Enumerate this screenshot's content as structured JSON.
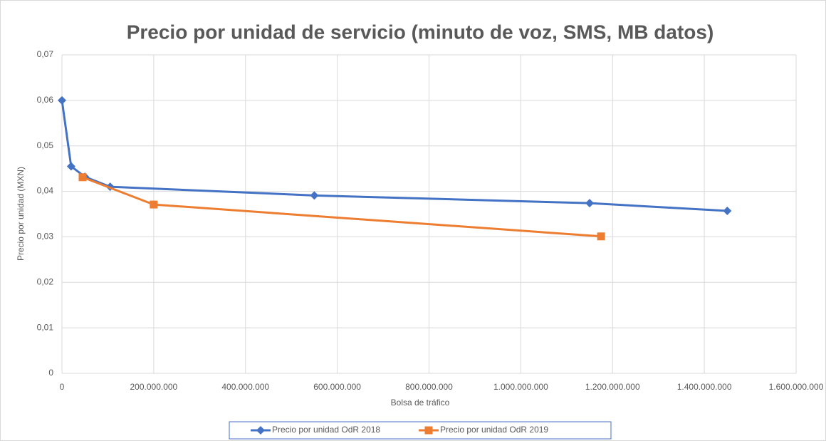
{
  "chart_data": {
    "type": "line",
    "title": "Precio por unidad de servicio (minuto de voz, SMS, MB datos)",
    "xlabel": "Bolsa de tráfico",
    "ylabel": "Precio por unidad (MXN)",
    "xlim": [
      0,
      1600000000
    ],
    "xticks": [
      0,
      {
        "value": 200000000,
        "label": "200.000.000"
      },
      {
        "value": 400000000,
        "label": "400.000.000"
      },
      {
        "value": 600000000,
        "label": "600.000.000"
      },
      {
        "value": 800000000,
        "label": "800.000.000"
      },
      {
        "value": 1000000000,
        "label": "1.000.000.000"
      },
      {
        "value": 1200000000,
        "label": "1.200.000.000"
      },
      {
        "value": 1400000000,
        "label": "1.400.000.000"
      },
      {
        "value": 1600000000,
        "label": "1.600.000.000"
      }
    ],
    "ylim": [
      0,
      0.07
    ],
    "yticks": [
      0,
      {
        "value": 0.01,
        "label": "0,01"
      },
      {
        "value": 0.02,
        "label": "0,02"
      },
      {
        "value": 0.03,
        "label": "0,03"
      },
      {
        "value": 0.04,
        "label": "0,04"
      },
      {
        "value": 0.05,
        "label": "0,05"
      },
      {
        "value": 0.06,
        "label": "0,06"
      },
      {
        "value": 0.07,
        "label": "0,07"
      }
    ],
    "grid": true,
    "legend": "bottom",
    "series": [
      {
        "name": "Precio por unidad OdR 2018",
        "color": "#4472c4",
        "marker": "diamond",
        "x": [
          0,
          20000000,
          50000000,
          105000000,
          550000000,
          1150000000,
          1450000000
        ],
        "values": [
          0.06,
          0.0455,
          0.0432,
          0.041,
          0.0391,
          0.0374,
          0.0357
        ]
      },
      {
        "name": "Precio por unidad OdR 2019",
        "color": "#ed7d31",
        "marker": "square",
        "x": [
          45000000,
          200000000,
          1175000000
        ],
        "values": [
          0.0431,
          0.0371,
          0.0301
        ]
      }
    ]
  }
}
